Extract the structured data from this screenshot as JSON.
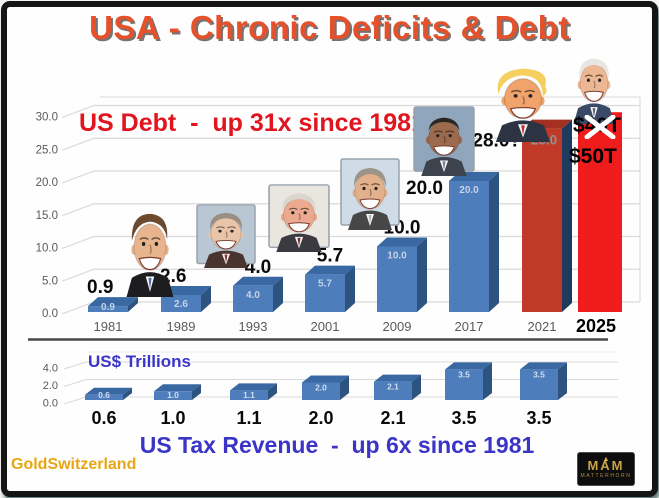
{
  "title": "USA - Chronic Deficits & Debt",
  "units_label": "US$ Trillions",
  "theme": {
    "title_color": "#e4512b",
    "debt_label_color": "#e0151f",
    "revenue_label_color": "#3a35c6",
    "brand_color": "#e7a615",
    "axis_color": "#595959",
    "grid_color": "#d9d9d9",
    "bar_blue": "#4d7dba",
    "bar_blue_top": "#3a68a2",
    "bar_blue_side": "#2d5480",
    "bar_dark_red": "#c13a27",
    "bar_dark_red_top": "#a33020",
    "bar_dark_red_side": "#20395f",
    "bar_bright_red": "#ee1c1c",
    "value_label_color": "#0a0a0a",
    "in_bar_label_color": "#c6d3e8",
    "in_bar_label_grey": "#8f8f8f",
    "divider_color": "#474747"
  },
  "chart_data": [
    {
      "id": "us-debt",
      "type": "bar",
      "title": "US Debt  -  up 31x since 1981",
      "ylabel": "US$ Trillions",
      "ylim": [
        0,
        30
      ],
      "ytick_values": [
        30,
        25,
        20,
        15,
        10,
        5,
        0
      ],
      "yticks": [
        "30.0",
        "25.0",
        "20.0",
        "15.0",
        "10.0",
        "5.0",
        "0.0"
      ],
      "categories": [
        "1981",
        "1989",
        "1993",
        "2001",
        "2009",
        "2017",
        "2021",
        "2025"
      ],
      "values": [
        0.9,
        2.6,
        4.0,
        5.7,
        10.0,
        20.0,
        28.0,
        30.5
      ],
      "value_labels": [
        "0.9",
        "2.6",
        "4.0",
        "5.7",
        "10.0",
        "20.0",
        "28.0?",
        ""
      ],
      "in_bar_labels": [
        "0.9",
        "2.6",
        "4.0",
        "5.7",
        "10.0",
        "20.0",
        "28.0",
        ""
      ],
      "bar_styles": [
        "blue",
        "blue",
        "blue",
        "blue",
        "blue",
        "blue",
        "dark_red",
        "bright_red"
      ],
      "annotations": [
        {
          "text": "$40T",
          "crossed_out": true
        },
        {
          "text": "$50T",
          "crossed_out": false
        }
      ],
      "grid": true,
      "legend": false
    },
    {
      "id": "us-tax-revenue",
      "type": "bar",
      "title": "US Tax Revenue  -  up 6x since 1981",
      "ylabel": "US$ Trillions",
      "ylim": [
        0,
        4
      ],
      "ytick_values": [
        4,
        2,
        0
      ],
      "yticks": [
        "4.0",
        "2.0",
        "0.0"
      ],
      "categories": [
        "1981",
        "1989",
        "1993",
        "2001",
        "2009",
        "2017",
        "2021"
      ],
      "values": [
        0.6,
        1.0,
        1.1,
        2.0,
        2.1,
        3.5,
        3.5
      ],
      "value_labels": [
        "0.6",
        "1.0",
        "1.1",
        "2.0",
        "2.1",
        "3.5",
        "3.5"
      ],
      "in_bar_labels": [
        "0.6",
        "1.0",
        "1.1",
        "2.0",
        "2.1",
        "3.5",
        "3.5"
      ],
      "bar_styles": [
        "blue",
        "blue",
        "blue",
        "blue",
        "blue",
        "blue",
        "blue"
      ],
      "grid": true,
      "legend": false
    }
  ],
  "presidents": [
    {
      "id": "reagan",
      "name": "Ronald Reagan caricature",
      "skin": "#e8b48e",
      "hair": "#6b4a2f",
      "suit": "#1d1d1f",
      "tie": "#4d6fb0",
      "photo_frame": false,
      "hair_style": "pompadour"
    },
    {
      "id": "bush-sr",
      "name": "George H. W. Bush caricature",
      "skin": "#e9c4a8",
      "hair": "#9a8d82",
      "suit": "#4a3430",
      "tie": "#8a2f2a",
      "photo_frame": true,
      "bg": "#b9c6d4",
      "hair_style": "side"
    },
    {
      "id": "clinton",
      "name": "Bill Clinton caricature",
      "skin": "#eba98f",
      "hair": "#dad5cd",
      "suit": "#3a3a40",
      "tie": "#7c2c2c",
      "photo_frame": true,
      "bg": "#e9e6df",
      "hair_style": "side"
    },
    {
      "id": "bush-jr",
      "name": "George W. Bush caricature",
      "skin": "#e2b08a",
      "hair": "#9c9489",
      "suit": "#474747",
      "tie": "#b0b6c0",
      "photo_frame": true,
      "bg": "#cfdbe6",
      "hair_style": "side"
    },
    {
      "id": "obama",
      "name": "Barack Obama caricature",
      "skin": "#9c6b4e",
      "hair": "#2a2622",
      "suit": "#3d434c",
      "tie": "#6f7d92",
      "photo_frame": true,
      "bg": "#8fa6bd",
      "hair_style": "buzz"
    },
    {
      "id": "trump",
      "name": "Donald Trump caricature",
      "skin": "#f0a36b",
      "hair": "#f5d060",
      "suit": "#2c3444",
      "tie": "#c03030",
      "photo_frame": false,
      "hair_style": "swoosh"
    },
    {
      "id": "biden",
      "name": "Joe Biden caricature",
      "skin": "#edb793",
      "hair": "#e8e6e2",
      "suit": "#3a4a66",
      "tie": "#55637e",
      "photo_frame": false,
      "hair_style": "slick"
    }
  ],
  "footer": {
    "brand": "GoldSwitzerland",
    "logo_text": "MAM",
    "logo_subtext": "MATTERHORN"
  }
}
